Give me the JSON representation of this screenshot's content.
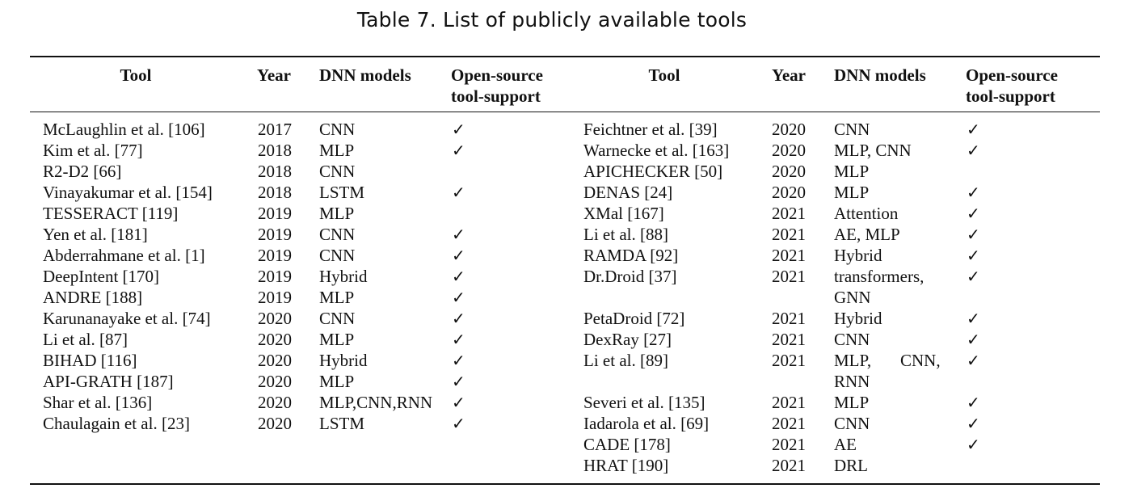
{
  "caption": "Table 7.  List of publicly available tools",
  "headers": {
    "tool": "Tool",
    "year": "Year",
    "dnn_models": "DNN models",
    "open_source": "Open-source\ntool-support"
  },
  "check_symbol": "✓",
  "left_rows": [
    {
      "tool": "McLaughlin et al. [106]",
      "year": "2017",
      "models": "CNN",
      "open_source": true
    },
    {
      "tool": "Kim et al. [77]",
      "year": "2018",
      "models": "MLP",
      "open_source": true
    },
    {
      "tool": "R2-D2 [66]",
      "year": "2018",
      "models": "CNN",
      "open_source": false
    },
    {
      "tool": "Vinayakumar et al. [154]",
      "year": "2018",
      "models": "LSTM",
      "open_source": true
    },
    {
      "tool": "TESSERACT [119]",
      "year": "2019",
      "models": "MLP",
      "open_source": false
    },
    {
      "tool": "Yen et al. [181]",
      "year": "2019",
      "models": "CNN",
      "open_source": true
    },
    {
      "tool": "Abderrahmane et al. [1]",
      "year": "2019",
      "models": "CNN",
      "open_source": true
    },
    {
      "tool": "DeepIntent [170]",
      "year": "2019",
      "models": "Hybrid",
      "open_source": true
    },
    {
      "tool": "ANDRE [188]",
      "year": "2019",
      "models": "MLP",
      "open_source": true
    },
    {
      "tool": "Karunanayake et al. [74]",
      "year": "2020",
      "models": "CNN",
      "open_source": true
    },
    {
      "tool": "Li et al. [87]",
      "year": "2020",
      "models": "MLP",
      "open_source": true
    },
    {
      "tool": "BIHAD [116]",
      "year": "2020",
      "models": "Hybrid",
      "open_source": true
    },
    {
      "tool": "API-GRATH [187]",
      "year": "2020",
      "models": "MLP",
      "open_source": true
    },
    {
      "tool": "Shar et al. [136]",
      "year": "2020",
      "models": "MLP,CNN,RNN",
      "open_source": true
    },
    {
      "tool": "Chaulagain et al. [23]",
      "year": "2020",
      "models": "LSTM",
      "open_source": true
    }
  ],
  "right_rows": [
    {
      "tool": "Feichtner et al. [39]",
      "year": "2020",
      "models": "CNN",
      "open_source": true
    },
    {
      "tool": "Warnecke et al. [163]",
      "year": "2020",
      "models": "MLP, CNN",
      "open_source": true
    },
    {
      "tool": "APICHECKER [50]",
      "year": "2020",
      "models": "MLP",
      "open_source": false
    },
    {
      "tool": "DENAS [24]",
      "year": "2020",
      "models": "MLP",
      "open_source": true
    },
    {
      "tool": "XMal [167]",
      "year": "2021",
      "models": "Attention",
      "open_source": true
    },
    {
      "tool": "Li et al. [88]",
      "year": "2021",
      "models": "AE, MLP",
      "open_source": true
    },
    {
      "tool": "RAMDA [92]",
      "year": "2021",
      "models": "Hybrid",
      "open_source": true
    },
    {
      "tool": "Dr.Droid [37]",
      "year": "2021",
      "models": "transformers,",
      "models_line2": "GNN",
      "open_source": true
    },
    {
      "tool": "PetaDroid [72]",
      "year": "2021",
      "models": "Hybrid",
      "open_source": true
    },
    {
      "tool": "DexRay [27]",
      "year": "2021",
      "models": "CNN",
      "open_source": true
    },
    {
      "tool": "Li et al. [89]",
      "year": "2021",
      "models": "MLP,",
      "models_mid": "CNN,",
      "models_line2": "RNN",
      "open_source": true
    },
    {
      "tool": "Severi et al. [135]",
      "year": "2021",
      "models": "MLP",
      "open_source": true
    },
    {
      "tool": "Iadarola et al. [69]",
      "year": "2021",
      "models": "CNN",
      "open_source": true
    },
    {
      "tool": "CADE [178]",
      "year": "2021",
      "models": "AE",
      "open_source": true
    },
    {
      "tool": "HRAT [190]",
      "year": "2021",
      "models": "DRL",
      "open_source": false
    }
  ]
}
